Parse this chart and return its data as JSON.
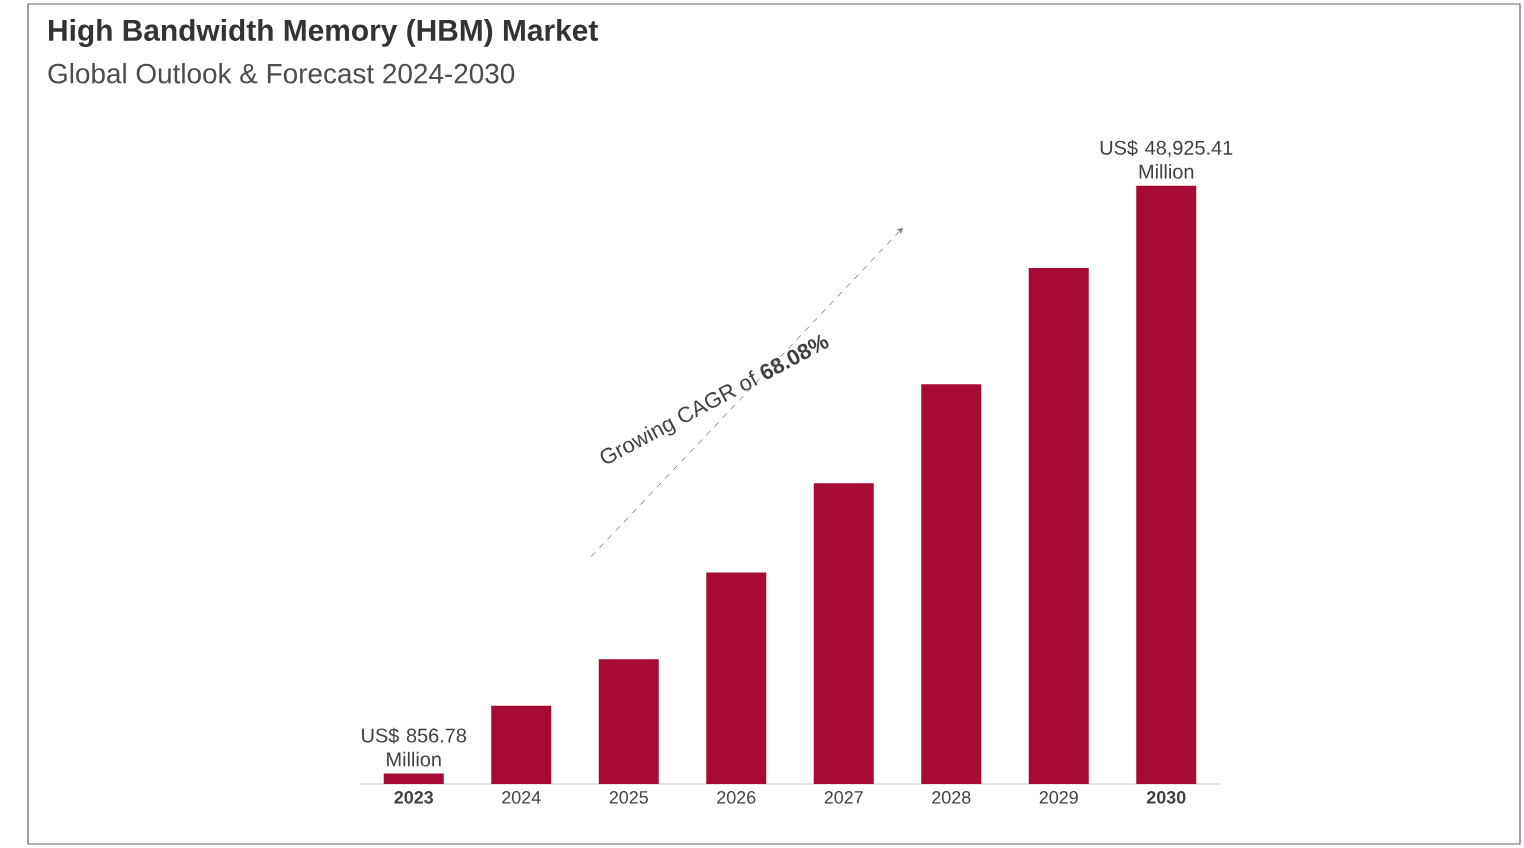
{
  "chart_data": {
    "type": "bar",
    "title": "High Bandwidth Memory (HBM) Market",
    "subtitle": "Global Outlook & Forecast 2024-2030",
    "categories": [
      "2023",
      "2024",
      "2025",
      "2026",
      "2027",
      "2028",
      "2029",
      "2030"
    ],
    "values": [
      856.78,
      6400,
      10200,
      17300,
      24600,
      32700,
      42200,
      48925.41
    ],
    "color": "#a50b35",
    "value_labels": [
      "US$ 856.78 Million",
      null,
      null,
      null,
      null,
      null,
      null,
      "US$ 48,925.41 Million"
    ],
    "annotations": [
      "Growing CAGR of **68.08%**"
    ]
  }
}
